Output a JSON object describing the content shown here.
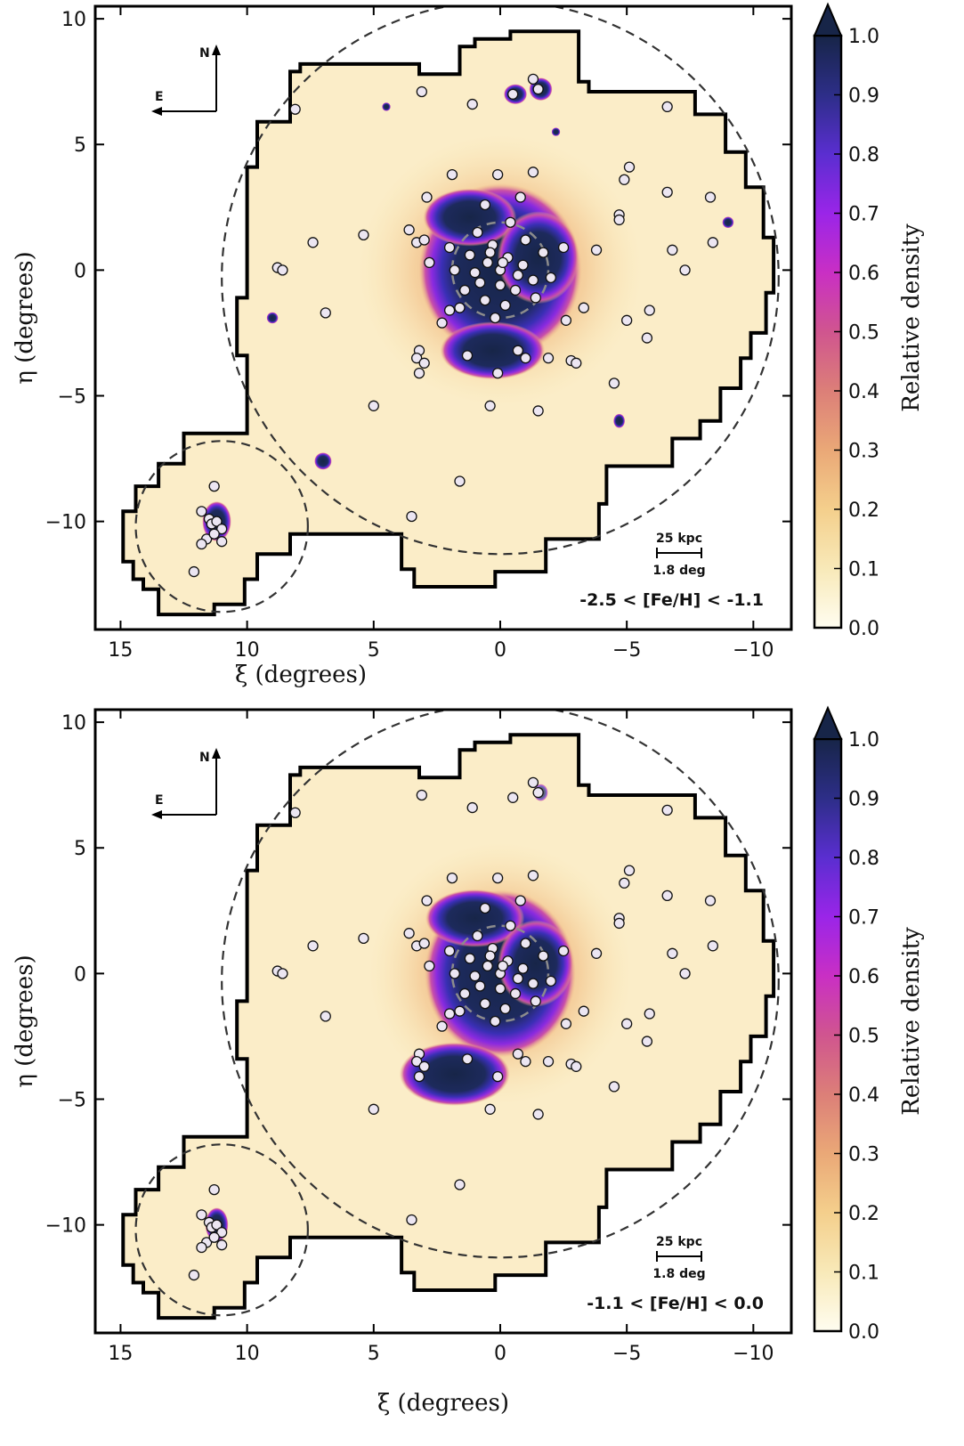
{
  "chart_data": [
    {
      "type": "heatmap",
      "title": "",
      "xlabel": "ξ (degrees)",
      "ylabel": "η (degrees)",
      "xlim": [
        16,
        -11.5
      ],
      "ylim": [
        -14.3,
        10.5
      ],
      "x_ticks": [
        15,
        10,
        5,
        0,
        -5,
        -10
      ],
      "x_tick_labels": [
        "15",
        "10",
        "5",
        "0",
        "−5",
        "−10"
      ],
      "y_ticks": [
        10,
        5,
        0,
        -5,
        -10
      ],
      "y_tick_labels": [
        "10",
        "5",
        "0",
        "−5",
        "−10"
      ],
      "annotation": "-2.5 < [Fe/H] < -1.1",
      "compass": {
        "north": "N",
        "east": "E"
      },
      "scale_bar": {
        "top": "25 kpc",
        "bottom": "1.8 deg"
      },
      "colorbar": {
        "label": "Relative density",
        "ticks": [
          "0.0",
          "0.1",
          "0.2",
          "0.3",
          "0.4",
          "0.5",
          "0.6",
          "0.7",
          "0.8",
          "0.9",
          "1.0"
        ],
        "range": [
          0.0,
          1.0
        ],
        "colormap": [
          "#fffdf0",
          "#f8e2a8",
          "#f0b87c",
          "#e08a70",
          "#d05a88",
          "#c92fc4",
          "#9a25e8",
          "#5a2ed0",
          "#2d2e88",
          "#172548"
        ]
      },
      "rings": [
        {
          "cx": 0,
          "cy": -0.3,
          "r": 11
        },
        {
          "cx": 11,
          "cy": -10.2,
          "r": 3.4
        },
        {
          "cx": 0,
          "cy": 0,
          "r": 1.9
        }
      ],
      "features": [
        {
          "name": "core",
          "x": 0,
          "y": 0,
          "rx": 2.8,
          "ry": 3.0,
          "value": 1.0
        },
        {
          "name": "upper-lobe",
          "x": 1.2,
          "y": 2.1,
          "rx": 1.6,
          "ry": 1.0,
          "value": 1.0
        },
        {
          "name": "west-lobe",
          "x": -1.5,
          "y": 0.5,
          "rx": 1.4,
          "ry": 1.6,
          "value": 1.0
        },
        {
          "name": "south-lobe",
          "x": 0.3,
          "y": -3.2,
          "rx": 1.8,
          "ry": 1.0,
          "value": 1.0
        },
        {
          "name": "satellite",
          "x": 11.2,
          "y": -10.0,
          "rx": 0.5,
          "ry": 0.7,
          "value": 1.0
        },
        {
          "name": "north-clump-1",
          "x": -0.6,
          "y": 7.0,
          "rx": 0.4,
          "ry": 0.35,
          "value": 1.0
        },
        {
          "name": "north-clump-2",
          "x": -1.6,
          "y": 7.2,
          "rx": 0.4,
          "ry": 0.4,
          "value": 1.0
        },
        {
          "name": "dwarf-1",
          "x": 7.0,
          "y": -7.6,
          "rx": 0.3,
          "ry": 0.3,
          "value": 1.0
        },
        {
          "name": "dwarf-2",
          "x": 9.0,
          "y": -1.9,
          "rx": 0.2,
          "ry": 0.2,
          "value": 1.0
        },
        {
          "name": "dwarf-3",
          "x": -4.7,
          "y": -6.0,
          "rx": 0.2,
          "ry": 0.25,
          "value": 1.0
        },
        {
          "name": "dwarf-4",
          "x": -9.0,
          "y": 1.9,
          "rx": 0.2,
          "ry": 0.2,
          "value": 1.0
        },
        {
          "name": "dwarf-5",
          "x": -2.2,
          "y": 5.5,
          "rx": 0.15,
          "ry": 0.15,
          "value": 1.0
        },
        {
          "name": "dwarf-6",
          "x": 4.5,
          "y": 6.5,
          "rx": 0.15,
          "ry": 0.15,
          "value": 1.0
        }
      ],
      "gc_points": [
        [
          3.1,
          7.1
        ],
        [
          1.1,
          6.6
        ],
        [
          -0.5,
          7.0
        ],
        [
          -1.5,
          7.2
        ],
        [
          -1.3,
          7.6
        ],
        [
          -6.6,
          6.5
        ],
        [
          8.1,
          6.4
        ],
        [
          -1.3,
          3.9
        ],
        [
          1.9,
          3.8
        ],
        [
          -5.1,
          4.1
        ],
        [
          -4.9,
          3.6
        ],
        [
          0.1,
          3.8
        ],
        [
          2.9,
          2.9
        ],
        [
          -0.8,
          2.9
        ],
        [
          0.6,
          2.6
        ],
        [
          -6.6,
          3.1
        ],
        [
          -8.3,
          2.9
        ],
        [
          -4.7,
          2.2
        ],
        [
          -4.7,
          2.0
        ],
        [
          5.4,
          1.4
        ],
        [
          7.4,
          1.1
        ],
        [
          -3.8,
          0.8
        ],
        [
          -8.4,
          1.1
        ],
        [
          -6.8,
          0.8
        ],
        [
          -7.3,
          0.0
        ],
        [
          8.8,
          0.1
        ],
        [
          8.6,
          0.0
        ],
        [
          3.6,
          1.6
        ],
        [
          3.3,
          1.1
        ],
        [
          3.0,
          1.2
        ],
        [
          2.8,
          0.3
        ],
        [
          -2.5,
          0.9
        ],
        [
          6.9,
          -1.7
        ],
        [
          2.0,
          -1.6
        ],
        [
          2.3,
          -2.1
        ],
        [
          -2.6,
          -2.0
        ],
        [
          -3.3,
          -1.5
        ],
        [
          -5.0,
          -2.0
        ],
        [
          -5.9,
          -1.6
        ],
        [
          -5.8,
          -2.7
        ],
        [
          3.2,
          -3.2
        ],
        [
          3.3,
          -3.5
        ],
        [
          3.0,
          -3.7
        ],
        [
          3.2,
          -4.1
        ],
        [
          1.3,
          -3.4
        ],
        [
          -0.7,
          -3.2
        ],
        [
          -1.0,
          -3.5
        ],
        [
          -1.9,
          -3.5
        ],
        [
          -2.8,
          -3.6
        ],
        [
          -3.0,
          -3.7
        ],
        [
          0.1,
          -4.1
        ],
        [
          -4.5,
          -4.5
        ],
        [
          5.0,
          -5.4
        ],
        [
          0.4,
          -5.4
        ],
        [
          -1.5,
          -5.6
        ],
        [
          1.6,
          -8.4
        ],
        [
          3.5,
          -9.8
        ],
        [
          11.3,
          -8.6
        ],
        [
          11.8,
          -9.6
        ],
        [
          11.5,
          -9.9
        ],
        [
          11.4,
          -10.1
        ],
        [
          11.2,
          -10.0
        ],
        [
          11.0,
          -10.3
        ],
        [
          11.6,
          -10.7
        ],
        [
          11.3,
          -10.5
        ],
        [
          11.0,
          -10.8
        ],
        [
          11.8,
          -10.9
        ],
        [
          12.1,
          -12.0
        ],
        [
          0.0,
          0.0
        ],
        [
          0.5,
          0.3
        ],
        [
          -0.3,
          0.5
        ],
        [
          0.8,
          -0.5
        ],
        [
          -0.6,
          -0.8
        ],
        [
          0.3,
          1.0
        ],
        [
          -0.9,
          0.2
        ],
        [
          1.2,
          0.6
        ],
        [
          -1.3,
          -0.4
        ],
        [
          0.6,
          -1.2
        ],
        [
          -0.2,
          -1.4
        ],
        [
          1.4,
          -0.8
        ],
        [
          -1.0,
          1.2
        ],
        [
          0.9,
          1.5
        ],
        [
          -1.7,
          0.7
        ],
        [
          1.8,
          0.0
        ],
        [
          -0.4,
          1.9
        ],
        [
          0.0,
          -0.6
        ],
        [
          0.4,
          0.7
        ],
        [
          -0.7,
          -0.2
        ],
        [
          1.0,
          -0.1
        ],
        [
          -1.4,
          -1.1
        ],
        [
          1.6,
          -1.5
        ],
        [
          -2.0,
          -0.3
        ],
        [
          2.0,
          0.9
        ],
        [
          0.2,
          -1.9
        ],
        [
          -0.1,
          0.3
        ]
      ]
    },
    {
      "type": "heatmap",
      "title": "",
      "xlabel": "ξ (degrees)",
      "ylabel": "η (degrees)",
      "xlim": [
        16,
        -11.5
      ],
      "ylim": [
        -14.3,
        10.5
      ],
      "x_ticks": [
        15,
        10,
        5,
        0,
        -5,
        -10
      ],
      "x_tick_labels": [
        "15",
        "10",
        "5",
        "0",
        "−5",
        "−10"
      ],
      "y_ticks": [
        10,
        5,
        0,
        -5,
        -10
      ],
      "y_tick_labels": [
        "10",
        "5",
        "0",
        "−5",
        "−10"
      ],
      "annotation": "-1.1 < [Fe/H] < 0.0",
      "compass": {
        "north": "N",
        "east": "E"
      },
      "scale_bar": {
        "top": "25 kpc",
        "bottom": "1.8 deg"
      },
      "colorbar": {
        "label": "Relative density",
        "ticks": [
          "0.0",
          "0.1",
          "0.2",
          "0.3",
          "0.4",
          "0.5",
          "0.6",
          "0.7",
          "0.8",
          "0.9",
          "1.0"
        ],
        "range": [
          0.0,
          1.0
        ],
        "colormap": [
          "#fffdf0",
          "#f8e2a8",
          "#f0b87c",
          "#e08a70",
          "#d05a88",
          "#c92fc4",
          "#9a25e8",
          "#5a2ed0",
          "#2d2e88",
          "#172548"
        ]
      },
      "rings": [
        {
          "cx": 0,
          "cy": -0.3,
          "r": 11
        },
        {
          "cx": 11,
          "cy": -10.2,
          "r": 3.4
        },
        {
          "cx": 0,
          "cy": 0,
          "r": 1.9
        }
      ],
      "features": [
        {
          "name": "core",
          "x": 0,
          "y": 0,
          "rx": 2.6,
          "ry": 2.9,
          "value": 1.0
        },
        {
          "name": "upper-lobe",
          "x": 1.0,
          "y": 2.2,
          "rx": 1.7,
          "ry": 1.0,
          "value": 1.0
        },
        {
          "name": "west-lobe",
          "x": -1.4,
          "y": 0.4,
          "rx": 1.3,
          "ry": 1.5,
          "value": 1.0
        },
        {
          "name": "south-lobe",
          "x": 1.8,
          "y": -4.0,
          "rx": 1.9,
          "ry": 1.1,
          "value": 1.0
        },
        {
          "name": "satellite",
          "x": 11.2,
          "y": -10.0,
          "rx": 0.4,
          "ry": 0.6,
          "value": 1.0
        },
        {
          "name": "north-clump-1",
          "x": -1.6,
          "y": 7.2,
          "rx": 0.25,
          "ry": 0.3,
          "value": 0.7
        }
      ],
      "gc_points": [
        [
          3.1,
          7.1
        ],
        [
          1.1,
          6.6
        ],
        [
          -0.5,
          7.0
        ],
        [
          -1.5,
          7.2
        ],
        [
          -1.3,
          7.6
        ],
        [
          -6.6,
          6.5
        ],
        [
          8.1,
          6.4
        ],
        [
          -1.3,
          3.9
        ],
        [
          1.9,
          3.8
        ],
        [
          -5.1,
          4.1
        ],
        [
          -4.9,
          3.6
        ],
        [
          0.1,
          3.8
        ],
        [
          2.9,
          2.9
        ],
        [
          -0.8,
          2.9
        ],
        [
          0.6,
          2.6
        ],
        [
          -6.6,
          3.1
        ],
        [
          -8.3,
          2.9
        ],
        [
          -4.7,
          2.2
        ],
        [
          -4.7,
          2.0
        ],
        [
          5.4,
          1.4
        ],
        [
          7.4,
          1.1
        ],
        [
          -3.8,
          0.8
        ],
        [
          -8.4,
          1.1
        ],
        [
          -6.8,
          0.8
        ],
        [
          -7.3,
          0.0
        ],
        [
          8.8,
          0.1
        ],
        [
          8.6,
          0.0
        ],
        [
          3.6,
          1.6
        ],
        [
          3.3,
          1.1
        ],
        [
          3.0,
          1.2
        ],
        [
          2.8,
          0.3
        ],
        [
          -2.5,
          0.9
        ],
        [
          6.9,
          -1.7
        ],
        [
          2.0,
          -1.6
        ],
        [
          2.3,
          -2.1
        ],
        [
          -2.6,
          -2.0
        ],
        [
          -3.3,
          -1.5
        ],
        [
          -5.0,
          -2.0
        ],
        [
          -5.9,
          -1.6
        ],
        [
          -5.8,
          -2.7
        ],
        [
          3.2,
          -3.2
        ],
        [
          3.3,
          -3.5
        ],
        [
          3.0,
          -3.7
        ],
        [
          3.2,
          -4.1
        ],
        [
          1.3,
          -3.4
        ],
        [
          -0.7,
          -3.2
        ],
        [
          -1.0,
          -3.5
        ],
        [
          -1.9,
          -3.5
        ],
        [
          -2.8,
          -3.6
        ],
        [
          -3.0,
          -3.7
        ],
        [
          0.1,
          -4.1
        ],
        [
          -4.5,
          -4.5
        ],
        [
          5.0,
          -5.4
        ],
        [
          0.4,
          -5.4
        ],
        [
          -1.5,
          -5.6
        ],
        [
          1.6,
          -8.4
        ],
        [
          3.5,
          -9.8
        ],
        [
          11.3,
          -8.6
        ],
        [
          11.8,
          -9.6
        ],
        [
          11.5,
          -9.9
        ],
        [
          11.4,
          -10.1
        ],
        [
          11.2,
          -10.0
        ],
        [
          11.0,
          -10.3
        ],
        [
          11.6,
          -10.7
        ],
        [
          11.3,
          -10.5
        ],
        [
          11.0,
          -10.8
        ],
        [
          11.8,
          -10.9
        ],
        [
          12.1,
          -12.0
        ],
        [
          0.0,
          0.0
        ],
        [
          0.5,
          0.3
        ],
        [
          -0.3,
          0.5
        ],
        [
          0.8,
          -0.5
        ],
        [
          -0.6,
          -0.8
        ],
        [
          0.3,
          1.0
        ],
        [
          -0.9,
          0.2
        ],
        [
          1.2,
          0.6
        ],
        [
          -1.3,
          -0.4
        ],
        [
          0.6,
          -1.2
        ],
        [
          -0.2,
          -1.4
        ],
        [
          1.4,
          -0.8
        ],
        [
          -1.0,
          1.2
        ],
        [
          0.9,
          1.5
        ],
        [
          -1.7,
          0.7
        ],
        [
          1.8,
          0.0
        ],
        [
          -0.4,
          1.9
        ],
        [
          0.0,
          -0.6
        ],
        [
          0.4,
          0.7
        ],
        [
          -0.7,
          -0.2
        ],
        [
          1.0,
          -0.1
        ],
        [
          -1.4,
          -1.1
        ],
        [
          1.6,
          -1.5
        ],
        [
          -2.0,
          -0.3
        ],
        [
          2.0,
          0.9
        ],
        [
          0.2,
          -1.9
        ],
        [
          -0.1,
          0.3
        ]
      ]
    }
  ]
}
